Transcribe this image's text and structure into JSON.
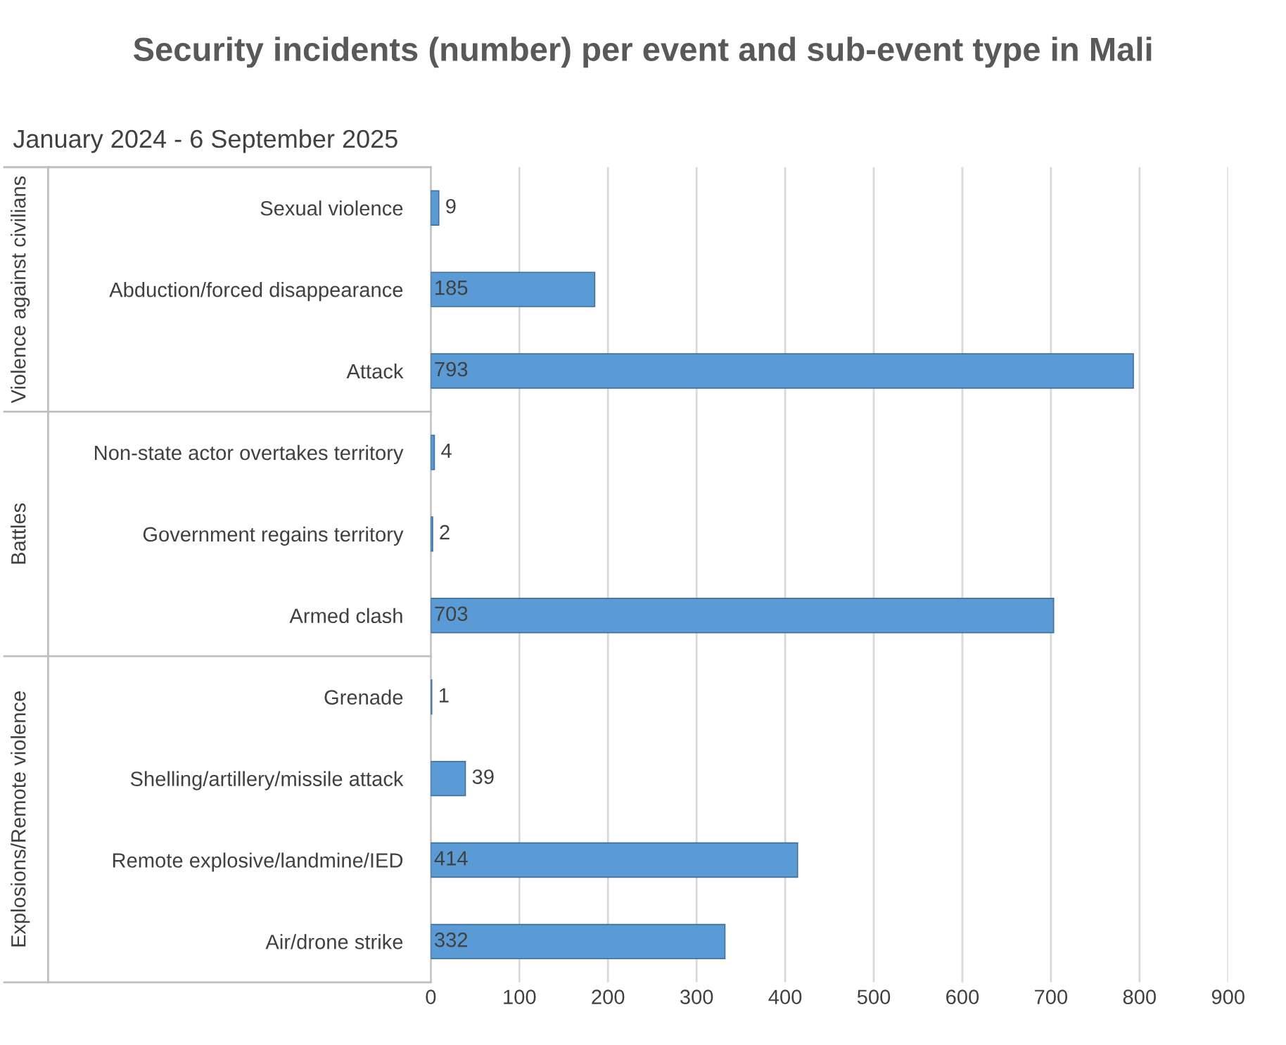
{
  "chart_data": {
    "type": "bar",
    "orientation": "horizontal",
    "title": "Security incidents (number) per event and sub-event type in Mali",
    "subtitle": "January 2024 - 6 September 2025",
    "categories": [
      "Sexual violence",
      "Abduction/forced disappearance",
      "Attack",
      "Non-state actor overtakes territory",
      "Government regains territory",
      "Armed clash",
      "Grenade",
      "Shelling/artillery/missile attack",
      "Remote explosive/landmine/IED",
      "Air/drone strike"
    ],
    "values": [
      9,
      185,
      793,
      4,
      2,
      703,
      1,
      39,
      414,
      332
    ],
    "color": "#5b9bd5",
    "xlim": [
      0,
      900
    ],
    "xticks": [
      0,
      100,
      200,
      300,
      400,
      500,
      600,
      700,
      800,
      900
    ],
    "grid": "x",
    "data_labels": true,
    "annotations": [
      "Violence against civilians",
      "Battles",
      "Explosions/Remote violence"
    ]
  }
}
